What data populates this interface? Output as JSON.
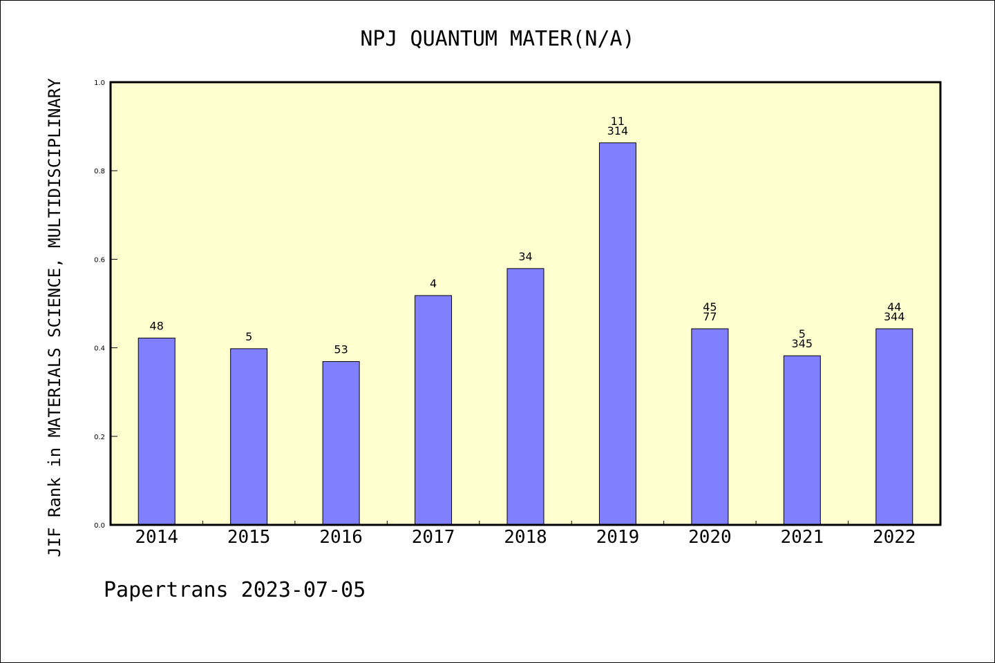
{
  "chart_data": {
    "type": "bar",
    "title": "NPJ QUANTUM MATER(N/A)",
    "ylabel": "JIF Rank in MATERIALS SCIENCE, MULTIDISCIPLINARY",
    "xlabel": "",
    "categories": [
      "2014",
      "2015",
      "2016",
      "2017",
      "2018",
      "2019",
      "2020",
      "2021",
      "2022"
    ],
    "values": [
      0.422,
      0.398,
      0.369,
      0.518,
      0.579,
      0.863,
      0.443,
      0.382,
      0.443
    ],
    "bar_labels": [
      [
        "48"
      ],
      [
        "5"
      ],
      [
        "53"
      ],
      [
        "4"
      ],
      [
        "34"
      ],
      [
        "11",
        "314"
      ],
      [
        "45",
        "77"
      ],
      [
        "5",
        "345"
      ],
      [
        "44",
        "344"
      ]
    ],
    "ylim": [
      0,
      1.0
    ],
    "yticks": [
      "0.0",
      "0.2",
      "0.4",
      "0.6",
      "0.8",
      "1.0"
    ],
    "grid": false,
    "colors": {
      "bar_fill": "#8080ff",
      "plot_background": "#ffffd0",
      "axis": "#000000"
    }
  },
  "footer": "Papertrans 2023-07-05"
}
